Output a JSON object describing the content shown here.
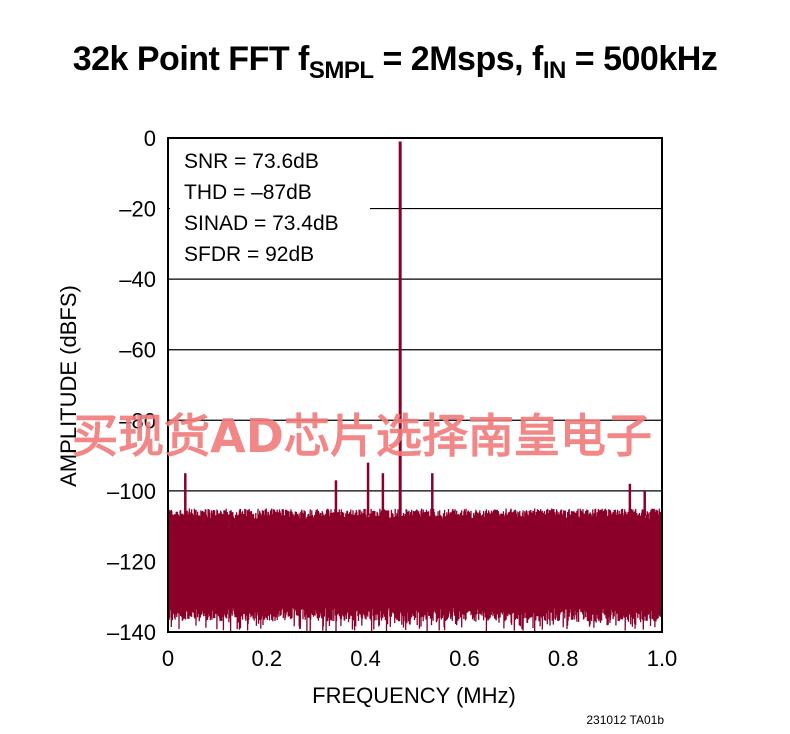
{
  "title": {
    "prefix": "32k Point FFT f",
    "sub1": "SMPL",
    "mid": " = 2Msps, f",
    "sub2": "IN",
    "suffix": " = 500kHz"
  },
  "figure_id": "231012 TA01b",
  "watermark": "买现货AD芯片选择南皇电子",
  "colors": {
    "trace": "#8b0029",
    "grid": "#000000"
  },
  "chart_data": {
    "type": "line",
    "xlabel": "FREQUENCY (MHz)",
    "ylabel": "AMPLITUDE (dBFS)",
    "xlim": [
      0,
      1.0
    ],
    "ylim": [
      -140,
      0
    ],
    "xticks": [
      0,
      0.2,
      0.4,
      0.6,
      0.8,
      1.0
    ],
    "xtick_labels": [
      "0",
      "0.2",
      "0.4",
      "0.6",
      "0.8",
      "1.0"
    ],
    "yticks": [
      0,
      -20,
      -40,
      -60,
      -80,
      -100,
      -120,
      -140
    ],
    "ytick_labels": [
      "0",
      "–20",
      "–40",
      "–60",
      "–80",
      "–100",
      "–120",
      "–140"
    ],
    "grid": "horizontal",
    "annotations": [
      "SNR = 73.6dB",
      "THD = –87dB",
      "SINAD = 73.4dB",
      "SFDR = 92dB"
    ],
    "noise_floor": {
      "typical_high_dBFS": -107,
      "typical_low_dBFS": -133,
      "min_dBFS": -140
    },
    "peaks": [
      {
        "x": 0.47,
        "y": -1
      },
      {
        "x": 0.035,
        "y": -95
      },
      {
        "x": 0.34,
        "y": -97
      },
      {
        "x": 0.405,
        "y": -92
      },
      {
        "x": 0.435,
        "y": -95
      },
      {
        "x": 0.535,
        "y": -95
      },
      {
        "x": 0.935,
        "y": -98
      },
      {
        "x": 0.965,
        "y": -100
      }
    ]
  }
}
